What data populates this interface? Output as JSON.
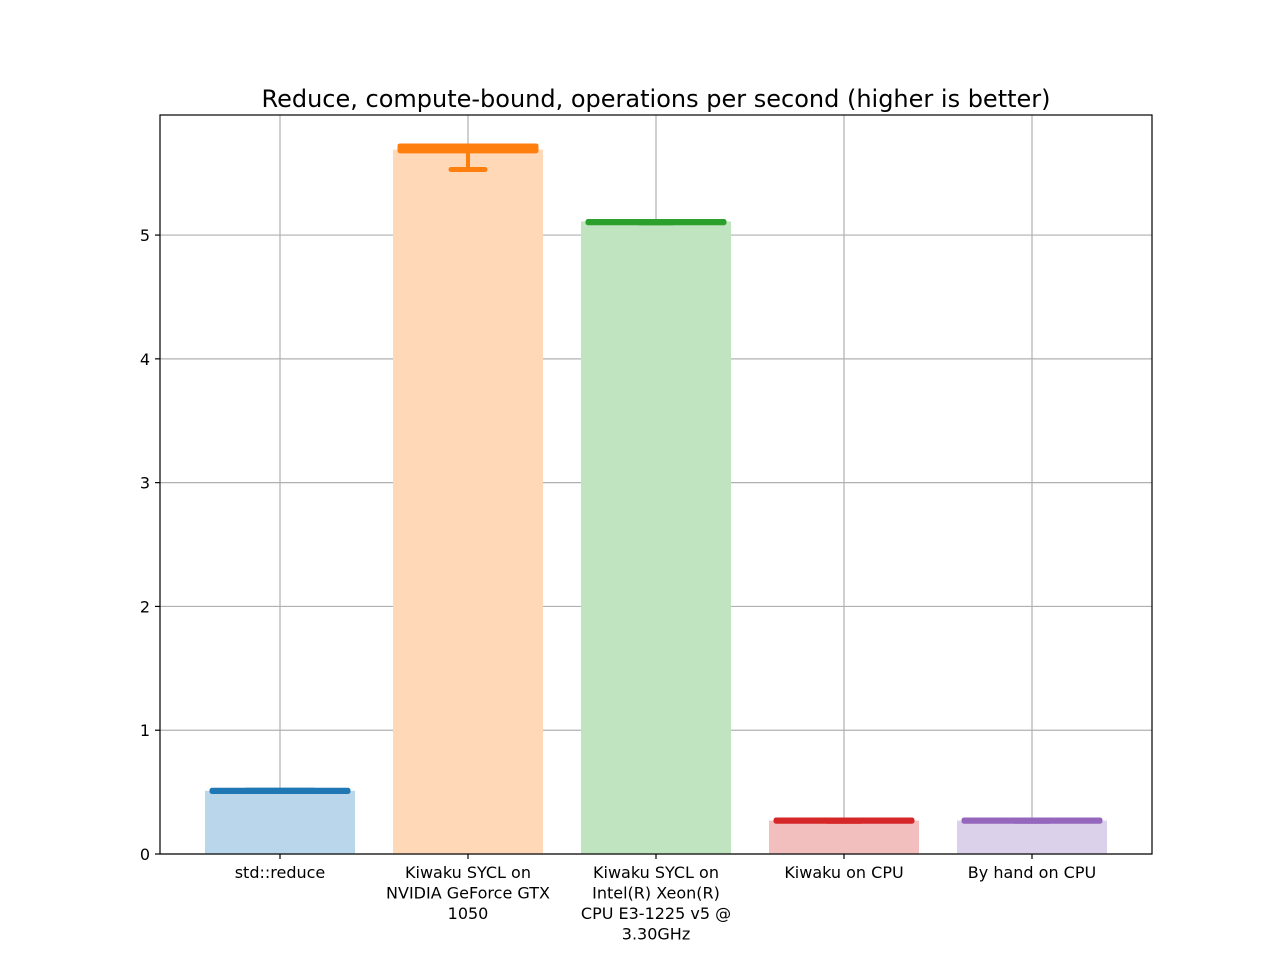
{
  "chart_data": {
    "type": "bar",
    "title": "Reduce, compute-bound, operations per second (higher is better)",
    "xlabel": "",
    "ylabel": "",
    "ylim": [
      0,
      5.97
    ],
    "yticks": [
      0,
      1,
      2,
      3,
      4,
      5
    ],
    "grid": true,
    "categories": [
      [
        "std::reduce"
      ],
      [
        "Kiwaku SYCL on",
        "NVIDIA GeForce GTX",
        "1050"
      ],
      [
        "Kiwaku SYCL on",
        "Intel(R) Xeon(R)",
        "CPU E3-1225 v5 @",
        "3.30GHz"
      ],
      [
        "Kiwaku on CPU"
      ],
      [
        "By hand on CPU"
      ]
    ],
    "values": [
      0.51,
      5.69,
      5.11,
      0.27,
      0.27
    ],
    "box_stats": [
      {
        "q1": 0.505,
        "q3": 0.515,
        "whisker_low": 0.505,
        "whisker_high": 0.515
      },
      {
        "q1": 5.68,
        "q3": 5.72,
        "whisker_low": 5.53,
        "whisker_high": 5.72
      },
      {
        "q1": 5.1,
        "q3": 5.11,
        "whisker_low": 5.1,
        "whisker_high": 5.11
      },
      {
        "q1": 0.265,
        "q3": 0.275,
        "whisker_low": 0.265,
        "whisker_high": 0.275
      },
      {
        "q1": 0.265,
        "q3": 0.275,
        "whisker_low": 0.265,
        "whisker_high": 0.275
      }
    ],
    "colors": {
      "box": [
        "#1f77b4",
        "#ff7f0e",
        "#2ca02c",
        "#d62728",
        "#9467bd"
      ],
      "bar": [
        "#bad6ea",
        "#ffd9b7",
        "#c0e3c0",
        "#f2bebe",
        "#dcd1ea"
      ]
    }
  }
}
